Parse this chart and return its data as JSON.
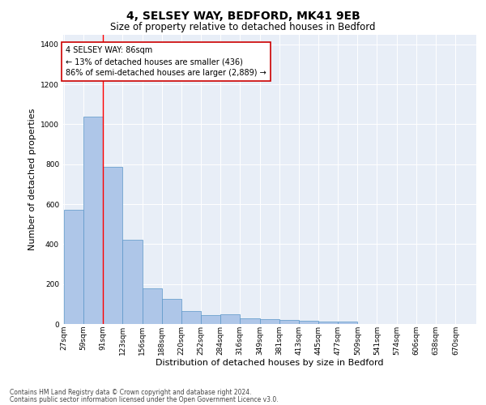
{
  "title1": "4, SELSEY WAY, BEDFORD, MK41 9EB",
  "title2": "Size of property relative to detached houses in Bedford",
  "xlabel": "Distribution of detached houses by size in Bedford",
  "ylabel": "Number of detached properties",
  "footnote1": "Contains HM Land Registry data © Crown copyright and database right 2024.",
  "footnote2": "Contains public sector information licensed under the Open Government Licence v3.0.",
  "bar_left_edges": [
    27,
    59,
    91,
    123,
    156,
    188,
    220,
    252,
    284,
    316,
    349,
    381,
    413,
    445,
    477,
    509,
    541,
    574,
    606,
    638
  ],
  "bar_heights": [
    570,
    1040,
    785,
    420,
    180,
    125,
    65,
    45,
    50,
    28,
    25,
    22,
    18,
    12,
    12,
    0,
    0,
    0,
    0,
    0
  ],
  "bar_widths": [
    32,
    32,
    32,
    33,
    32,
    32,
    32,
    32,
    32,
    33,
    32,
    32,
    32,
    32,
    32,
    32,
    33,
    32,
    32,
    32
  ],
  "bar_color": "#aec6e8",
  "bar_edge_color": "#5a96c8",
  "red_line_x": 91,
  "ylim": [
    0,
    1450
  ],
  "yticks": [
    0,
    200,
    400,
    600,
    800,
    1000,
    1200,
    1400
  ],
  "xtick_labels": [
    "27sqm",
    "59sqm",
    "91sqm",
    "123sqm",
    "156sqm",
    "188sqm",
    "220sqm",
    "252sqm",
    "284sqm",
    "316sqm",
    "349sqm",
    "381sqm",
    "413sqm",
    "445sqm",
    "477sqm",
    "509sqm",
    "541sqm",
    "574sqm",
    "606sqm",
    "638sqm",
    "670sqm"
  ],
  "annotation_title": "4 SELSEY WAY: 86sqm",
  "annotation_line1": "← 13% of detached houses are smaller (436)",
  "annotation_line2": "86% of semi-detached houses are larger (2,889) →",
  "annotation_box_color": "#ffffff",
  "annotation_box_edgecolor": "#cc0000",
  "bg_color": "#e8eef7",
  "title1_fontsize": 10,
  "title2_fontsize": 8.5,
  "xlabel_fontsize": 8,
  "ylabel_fontsize": 8,
  "tick_fontsize": 6.5,
  "annotation_fontsize": 7,
  "footnote_fontsize": 5.5
}
